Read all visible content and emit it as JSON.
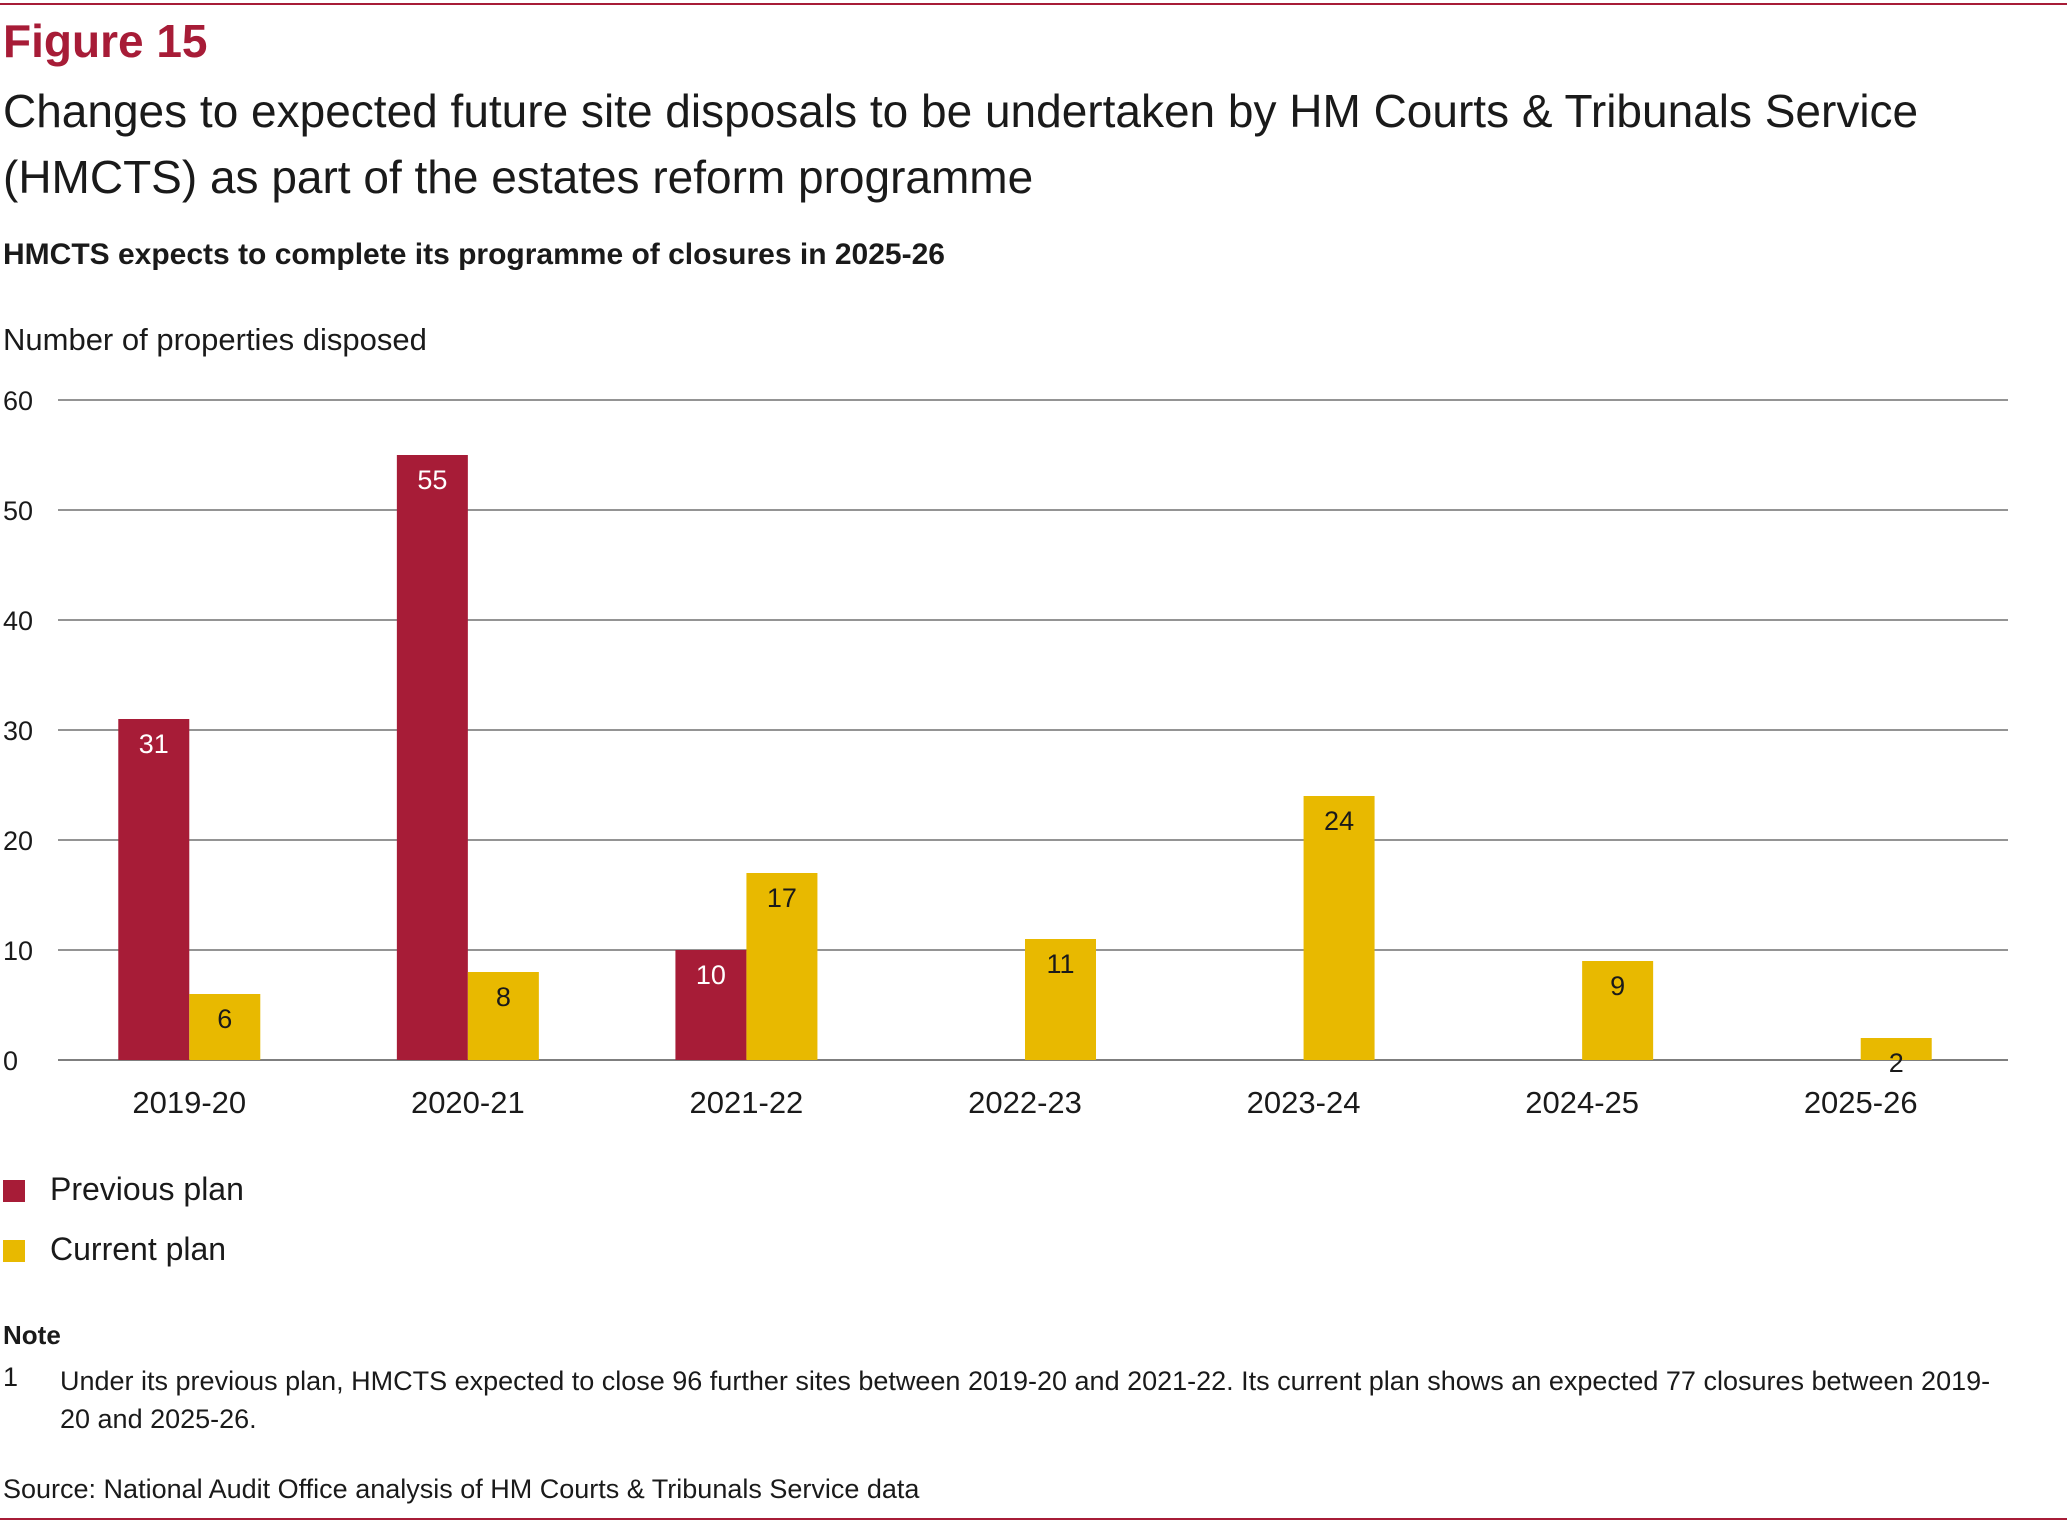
{
  "figure_label": "Figure 15",
  "figure_title": "Changes to expected future site disposals to be undertaken by HM Courts & Tribunals Service (HMCTS) as part of the estates reform programme",
  "subtitle": "HMCTS expects to complete its programme of closures in 2025-26",
  "colors": {
    "accent": "#a71c37",
    "previous_plan": "#a71c37",
    "current_plan": "#e8b900",
    "gridline": "#555555"
  },
  "chart_data": {
    "type": "bar",
    "title": "",
    "ylabel": "Number of properties disposed",
    "xlabel": "",
    "ylim": [
      0,
      60
    ],
    "yticks": [
      0,
      10,
      20,
      30,
      40,
      50,
      60
    ],
    "grid": true,
    "legend_position": "bottom-left",
    "categories": [
      "2019-20",
      "2020-21",
      "2021-22",
      "2022-23",
      "2023-24",
      "2024-25",
      "2025-26"
    ],
    "series": [
      {
        "name": "Previous plan",
        "color": "#a71c37",
        "label_color": "#ffffff",
        "values": [
          31,
          55,
          10,
          null,
          null,
          null,
          null
        ]
      },
      {
        "name": "Current plan",
        "color": "#e8b900",
        "label_color": "#1a1a1a",
        "values": [
          6,
          8,
          17,
          11,
          24,
          9,
          2
        ]
      }
    ]
  },
  "note": {
    "heading": "Note",
    "number": "1",
    "text": "Under its previous plan, HMCTS expected to close 96 further sites between 2019-20 and 2021-22. Its current plan shows an expected 77 closures between 2019-20 and 2025-26."
  },
  "source": "Source: National Audit Office analysis of HM Courts & Tribunals Service data"
}
